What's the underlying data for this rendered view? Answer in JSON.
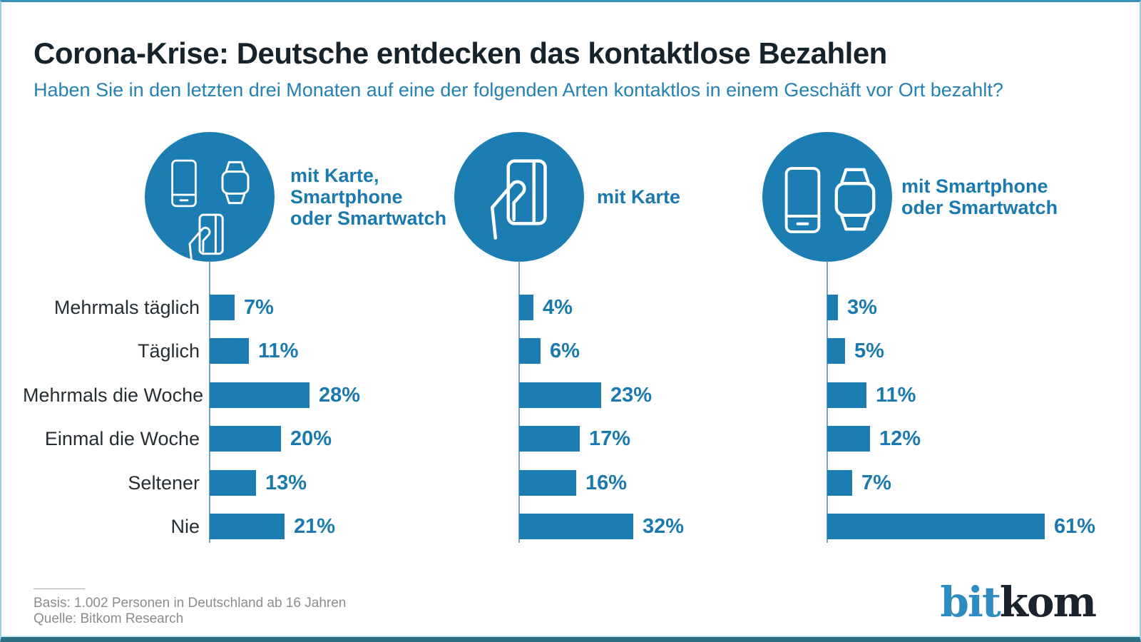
{
  "header": {
    "title": "Corona-Krise: Deutsche entdecken das kontaktlose Bezahlen",
    "subtitle": "Haben Sie in den letzten drei Monaten auf eine der folgenden Arten kontaktlos in einem Geschäft vor Ort bezahlt?"
  },
  "panels": [
    {
      "icons": [
        "smartphone-icon",
        "smartwatch-icon",
        "hand-card-icon"
      ],
      "label_lines": [
        "mit Karte,",
        "Smartphone",
        "oder Smartwatch"
      ]
    },
    {
      "icons": [
        "hand-card-icon"
      ],
      "label_lines": [
        "mit Karte"
      ]
    },
    {
      "icons": [
        "smartphone-icon",
        "smartwatch-icon"
      ],
      "label_lines": [
        "mit Smartphone",
        "oder Smartwatch"
      ]
    }
  ],
  "chart_data": {
    "type": "bar",
    "orientation": "horizontal",
    "unit": "%",
    "title": "Corona-Krise: Deutsche entdecken das kontaktlose Bezahlen",
    "subtitle": "Haben Sie in den letzten drei Monaten auf eine der folgenden Arten kontaktlos in einem Geschäft vor Ort bezahlt?",
    "categories": [
      "Mehrmals täglich",
      "Täglich",
      "Mehrmals die Woche",
      "Einmal die Woche",
      "Seltener",
      "Nie"
    ],
    "series": [
      {
        "name": "mit Karte, Smartphone oder Smartwatch",
        "values": [
          7,
          11,
          28,
          20,
          13,
          21
        ]
      },
      {
        "name": "mit Karte",
        "values": [
          4,
          6,
          23,
          17,
          16,
          32
        ]
      },
      {
        "name": "mit Smartphone oder Smartwatch",
        "values": [
          3,
          5,
          11,
          12,
          7,
          61
        ]
      }
    ],
    "value_labels": true,
    "xlim": [
      0,
      65
    ],
    "grid": false,
    "legend_position": "icons-top"
  },
  "footer": {
    "basis": "Basis: 1.002 Personen in Deutschland ab 16 Jahren",
    "quelle": "Quelle: Bitkom Research"
  },
  "logo": {
    "part1": "bit",
    "part2": "kom"
  },
  "colors": {
    "accent_blue": "#1b7db2",
    "value_label_blue": "#1a79ae",
    "subtitle_blue": "#2381b5",
    "title_dark": "#15232c",
    "category_dark": "#262e33",
    "axis_line": "#6fa7c2",
    "footer_gray": "#8c8c8c",
    "logo_blue": "#2e8cc0",
    "logo_dark": "#1b242e",
    "border_bottom_teal": "#2e6e81"
  }
}
